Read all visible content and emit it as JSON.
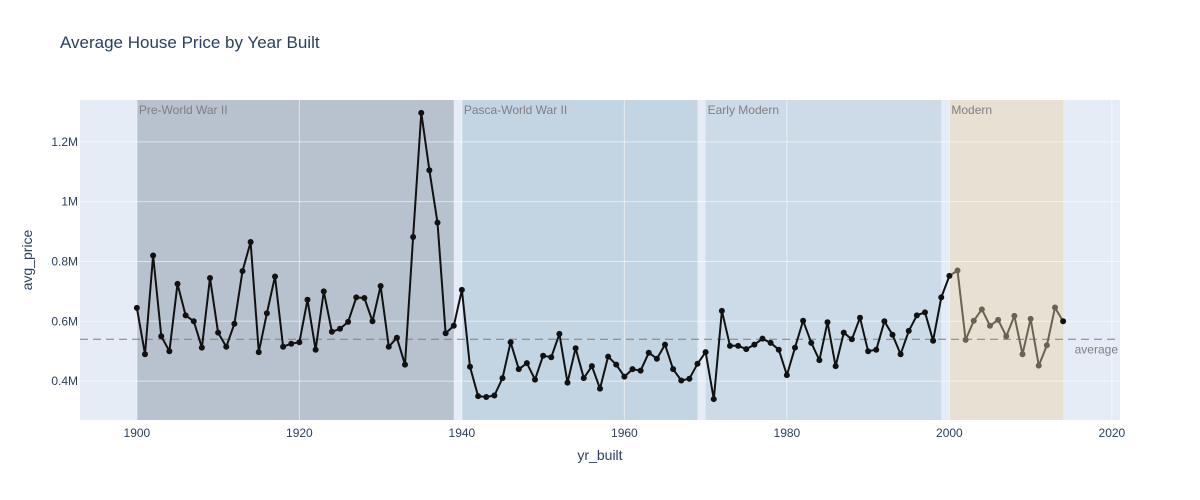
{
  "chart_data": {
    "type": "line",
    "title": "Average House Price by Year Built",
    "xlabel": "yr_built",
    "ylabel": "avg_price",
    "xlim": [
      1893,
      2021
    ],
    "ylim": [
      270000,
      1340000
    ],
    "x_ticks": [
      1900,
      1920,
      1940,
      1960,
      1980,
      2000,
      2020
    ],
    "y_ticks": [
      {
        "value": 400000,
        "label": "0.4M"
      },
      {
        "value": 600000,
        "label": "0.6M"
      },
      {
        "value": 800000,
        "label": "0.8M"
      },
      {
        "value": 1000000,
        "label": "1M"
      },
      {
        "value": 1200000,
        "label": "1.2M"
      }
    ],
    "grid": true,
    "colors": {
      "plot_bg": "#e5ecf6",
      "grid": "#ffffff",
      "line": "#111111",
      "modern_line": "#6b6352",
      "avg_line": "#7f7f7f",
      "band_pre_ww2": "#b8c2ce",
      "band_post_ww2": "#c3d4e3",
      "band_early_modern": "#cddbe8",
      "band_modern": "#e8e0d2"
    },
    "bands": [
      {
        "label": "Pre-World War II",
        "x0": 1900,
        "x1": 1939,
        "color": "#b8c2ce"
      },
      {
        "label": "Pasca-World War II",
        "x0": 1940,
        "x1": 1969,
        "color": "#c3d4e3"
      },
      {
        "label": "Early Modern",
        "x0": 1970,
        "x1": 1999,
        "color": "#cddbe8"
      },
      {
        "label": "Modern",
        "x0": 2000,
        "x1": 2014,
        "color": "#e8e0d2"
      }
    ],
    "average": {
      "value": 540000,
      "label": "average"
    },
    "modern_from": 2000,
    "series": [
      {
        "x": [
          1900,
          1901,
          1902,
          1903,
          1904,
          1905,
          1906,
          1907,
          1908,
          1909,
          1910,
          1911,
          1912,
          1913,
          1914,
          1915,
          1916,
          1917,
          1918,
          1919,
          1920,
          1921,
          1922,
          1923,
          1924,
          1925,
          1926,
          1927,
          1928,
          1929,
          1930,
          1931,
          1932,
          1933,
          1934,
          1935,
          1936,
          1937,
          1938,
          1939,
          1940,
          1941,
          1942,
          1943,
          1944,
          1945,
          1946,
          1947,
          1948,
          1949,
          1950,
          1951,
          1952,
          1953,
          1954,
          1955,
          1956,
          1957,
          1958,
          1959,
          1960,
          1961,
          1962,
          1963,
          1964,
          1965,
          1966,
          1967,
          1968,
          1969,
          1970,
          1971,
          1972,
          1973,
          1974,
          1975,
          1976,
          1977,
          1978,
          1979,
          1980,
          1981,
          1982,
          1983,
          1984,
          1985,
          1986,
          1987,
          1988,
          1989,
          1990,
          1991,
          1992,
          1993,
          1994,
          1995,
          1996,
          1997,
          1998,
          1999,
          2000,
          2001,
          2002,
          2003,
          2004,
          2005,
          2006,
          2007,
          2008,
          2009,
          2010,
          2011,
          2012,
          2013,
          2014
        ],
        "y": [
          645000,
          490000,
          820000,
          550000,
          500000,
          725000,
          620000,
          600000,
          512000,
          745000,
          562000,
          515000,
          592000,
          768000,
          865000,
          497000,
          627000,
          750000,
          515000,
          525000,
          530000,
          672000,
          505000,
          700000,
          565000,
          575000,
          598000,
          680000,
          678000,
          600000,
          718000,
          515000,
          545000,
          455000,
          882000,
          1297000,
          1105000,
          930000,
          560000,
          585000,
          705000,
          448000,
          350000,
          347000,
          352000,
          410000,
          530000,
          440000,
          460000,
          405000,
          485000,
          480000,
          558000,
          395000,
          510000,
          410000,
          450000,
          375000,
          482000,
          455000,
          415000,
          440000,
          435000,
          495000,
          475000,
          522000,
          440000,
          402000,
          408000,
          458000,
          497000,
          340000,
          635000,
          518000,
          518000,
          507000,
          522000,
          542000,
          528000,
          505000,
          420000,
          512000,
          602000,
          528000,
          470000,
          597000,
          450000,
          562000,
          540000,
          612000,
          500000,
          505000,
          600000,
          555000,
          490000,
          568000,
          620000,
          630000,
          535000,
          680000,
          752000,
          770000,
          538000,
          602000,
          640000,
          585000,
          605000,
          550000,
          618000,
          490000,
          608000,
          452000,
          520000,
          646000,
          600000
        ]
      }
    ]
  }
}
